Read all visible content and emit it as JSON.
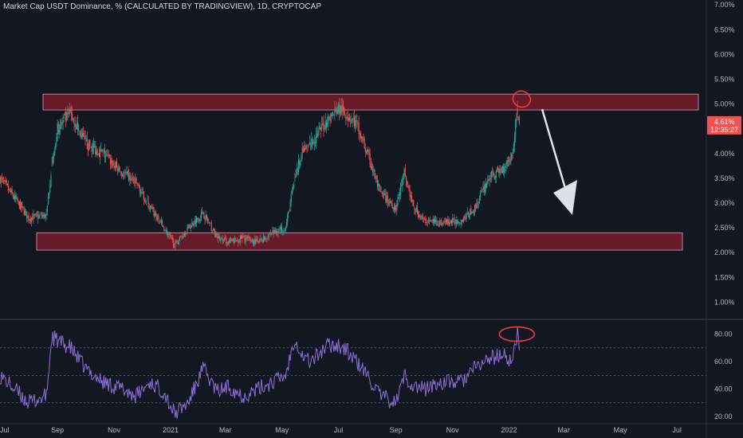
{
  "colors": {
    "background": "#131722",
    "up_candle": "#26a69a",
    "down_candle": "#ef5350",
    "zone_fill": "#7a1b2b",
    "zone_stroke": "#d3a0a8",
    "rsi_line": "#8e6fd6",
    "annotation_red": "#ef3b3b",
    "arrow_fill": "#dde1e8",
    "price_badge": "#ef5350",
    "axis_text": "#b2b5be",
    "grid": "#2a2e39"
  },
  "chart_data": [
    {
      "type": "candlestick",
      "title": "Market Cap USDT Dominance, % (CALCULATED BY TRADINGVIEW), 1D, CRYPTOCAP",
      "y_axis_labels": [
        "7.00%",
        "6.50%",
        "6.00%",
        "5.50%",
        "5.00%",
        "4.50%",
        "4.00%",
        "3.50%",
        "3.00%",
        "2.50%",
        "2.00%",
        "1.50%",
        "1.00%"
      ],
      "y_axis_values": [
        7.0,
        6.5,
        6.0,
        5.5,
        5.0,
        4.5,
        4.0,
        3.5,
        3.0,
        2.5,
        2.0,
        1.5,
        1.0
      ],
      "ylim": [
        0.7,
        7.1
      ],
      "x_axis_labels": [
        "Jul",
        "Sep",
        "Nov",
        "2021",
        "Mar",
        "May",
        "Jul",
        "Sep",
        "Nov",
        "2022",
        "Mar",
        "May",
        "Jul"
      ],
      "x_range": [
        "2020-07-01",
        "2022-07-31"
      ],
      "x": [
        "2020-07-01",
        "2020-08-01",
        "2020-08-20",
        "2020-08-26",
        "2020-09-01",
        "2020-09-15",
        "2020-10-01",
        "2020-10-20",
        "2020-11-10",
        "2020-11-25",
        "2020-12-10",
        "2020-12-25",
        "2021-01-05",
        "2021-01-20",
        "2021-02-05",
        "2021-02-20",
        "2021-03-05",
        "2021-03-20",
        "2021-04-05",
        "2021-04-20",
        "2021-05-05",
        "2021-05-15",
        "2021-05-22",
        "2021-06-01",
        "2021-06-20",
        "2021-07-01",
        "2021-07-10",
        "2021-07-20",
        "2021-08-01",
        "2021-08-15",
        "2021-09-01",
        "2021-09-10",
        "2021-09-20",
        "2021-10-01",
        "2021-10-20",
        "2021-11-10",
        "2021-11-25",
        "2021-12-10",
        "2021-12-25",
        "2022-01-05",
        "2022-01-10",
        "2022-01-12"
      ],
      "close": [
        3.5,
        2.7,
        2.75,
        3.8,
        4.5,
        4.8,
        4.2,
        4.0,
        3.6,
        3.4,
        2.9,
        2.5,
        2.15,
        2.5,
        2.8,
        2.3,
        2.2,
        2.3,
        2.2,
        2.4,
        2.5,
        3.5,
        4.0,
        4.2,
        4.7,
        4.9,
        4.8,
        4.6,
        4.0,
        3.2,
        2.9,
        3.6,
        2.9,
        2.65,
        2.6,
        2.65,
        2.9,
        3.5,
        3.7,
        4.0,
        4.9,
        4.61
      ],
      "zones": [
        {
          "name": "resistance",
          "low": 4.88,
          "high": 5.2
        },
        {
          "name": "support",
          "low": 2.05,
          "high": 2.4
        }
      ],
      "last_value_label": "4.61%",
      "last_value_countdown": "12:35:27"
    },
    {
      "type": "line",
      "y_axis_labels": [
        "80.00",
        "60.00",
        "40.00",
        "20.00"
      ],
      "y_axis_values": [
        80,
        60,
        40,
        20
      ],
      "ylim": [
        16,
        89
      ],
      "reference_levels": [
        70,
        50,
        30
      ],
      "x": [
        "2020-07-01",
        "2020-08-01",
        "2020-08-20",
        "2020-08-26",
        "2020-09-01",
        "2020-09-15",
        "2020-10-01",
        "2020-10-20",
        "2020-11-10",
        "2020-11-25",
        "2020-12-10",
        "2020-12-25",
        "2021-01-05",
        "2021-01-20",
        "2021-02-05",
        "2021-02-20",
        "2021-03-05",
        "2021-03-20",
        "2021-04-05",
        "2021-04-20",
        "2021-05-05",
        "2021-05-15",
        "2021-05-22",
        "2021-06-01",
        "2021-06-20",
        "2021-07-01",
        "2021-07-10",
        "2021-07-20",
        "2021-08-01",
        "2021-08-15",
        "2021-09-01",
        "2021-09-10",
        "2021-09-20",
        "2021-10-01",
        "2021-10-20",
        "2021-11-10",
        "2021-11-25",
        "2021-12-10",
        "2021-12-25",
        "2022-01-05",
        "2022-01-10",
        "2022-01-12"
      ],
      "values": [
        50,
        30,
        35,
        78,
        75,
        70,
        55,
        45,
        40,
        35,
        45,
        38,
        22,
        30,
        55,
        38,
        42,
        35,
        40,
        45,
        50,
        78,
        65,
        60,
        72,
        72,
        68,
        60,
        50,
        35,
        30,
        50,
        42,
        40,
        45,
        45,
        55,
        62,
        65,
        60,
        82,
        68
      ]
    }
  ]
}
